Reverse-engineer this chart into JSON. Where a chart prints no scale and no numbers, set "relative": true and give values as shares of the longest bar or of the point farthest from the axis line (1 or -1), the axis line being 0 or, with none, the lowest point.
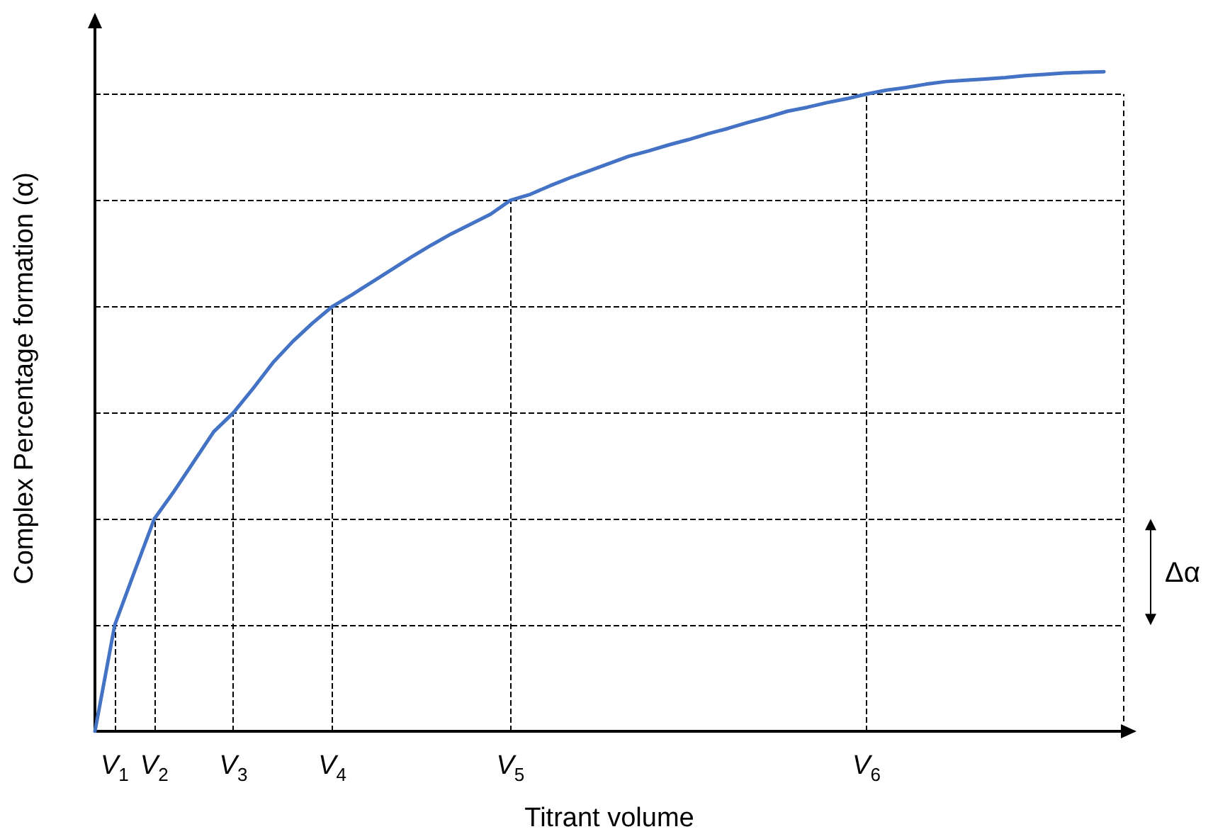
{
  "chart_data": {
    "type": "line",
    "relative": true,
    "xlabel": "Titrant volume",
    "ylabel": "Complex Percentage formation (α)",
    "categories": [
      null,
      "V$_{1}$",
      null,
      "V$_{2}$",
      null,
      null,
      null,
      "V$_{3}$",
      null,
      null,
      null,
      null,
      "V$_{4}$",
      null,
      null,
      null,
      null,
      null,
      null,
      null,
      null,
      "V$_{5}$",
      null,
      null,
      null,
      null,
      null,
      null,
      null,
      null,
      null,
      null,
      null,
      null,
      null,
      null,
      null,
      null,
      null,
      "V$_{6}$",
      null,
      null,
      null,
      null,
      null,
      null,
      null,
      null,
      null,
      null,
      null,
      null,
      null
    ],
    "series": [
      {
        "color": "#4472c4",
        "values": [
          0,
          0.161,
          0.242,
          0.322,
          0.364,
          0.409,
          0.454,
          0.483,
          0.52,
          0.559,
          0.591,
          0.619,
          0.644,
          0.662,
          0.681,
          0.7,
          0.719,
          0.737,
          0.754,
          0.769,
          0.784,
          0.805,
          0.814,
          0.827,
          0.839,
          0.85,
          0.861,
          0.872,
          0.88,
          0.889,
          0.897,
          0.906,
          0.914,
          0.923,
          0.931,
          0.94,
          0.946,
          0.953,
          0.959,
          0.966,
          0.972,
          0.976,
          0.981,
          0.985,
          0.987,
          0.989,
          0.991,
          0.994,
          0.996,
          0.998,
          0.999,
          1,
          null
        ]
      }
    ],
    "ref_lines": [
      {
        "axis": "y",
        "value": 0.161,
        "line_style": "dashed",
        "color": "#000000"
      },
      {
        "axis": "y",
        "value": 0.322,
        "line_style": "dashed",
        "color": "#000000"
      },
      {
        "axis": "y",
        "value": 0.483,
        "line_style": "dashed",
        "color": "#000000"
      },
      {
        "axis": "y",
        "value": 0.644,
        "line_style": "dashed",
        "color": "#000000"
      },
      {
        "axis": "y",
        "value": 0.805,
        "line_style": "dashed",
        "color": "#000000"
      },
      {
        "axis": "y",
        "value": 0.966,
        "line_style": "dashed",
        "color": "#000000"
      },
      {
        "axis": "x",
        "value": "V$_{1}$",
        "line_style": "dashed",
        "color": "#000000"
      },
      {
        "axis": "x",
        "value": "V$_{2}$",
        "line_style": "dashed",
        "color": "#000000"
      },
      {
        "axis": "x",
        "value": "V$_{3}$",
        "line_style": "dashed",
        "color": "#000000"
      },
      {
        "axis": "x",
        "value": "V$_{4}$",
        "line_style": "dashed",
        "color": "#000000"
      },
      {
        "axis": "x",
        "value": "V$_{5}$",
        "line_style": "dashed",
        "color": "#000000"
      },
      {
        "axis": "x",
        "value": "V$_{6}$",
        "line_style": "dashed",
        "color": "#000000"
      }
    ],
    "annotations": [
      "Δα"
    ],
    "marker": "none",
    "line_style": "solid",
    "grid": false
  }
}
